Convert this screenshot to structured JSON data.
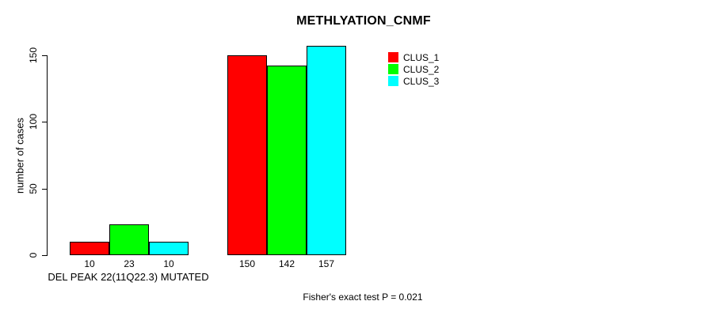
{
  "chart_data": {
    "type": "bar",
    "title": "METHLYATION_CNMF",
    "ylabel": "number of cases",
    "xlabel": "",
    "ylim": [
      0,
      150
    ],
    "yticks": [
      0,
      50,
      100,
      150
    ],
    "grid": false,
    "categories": [
      "DEL PEAK 22(11Q22.3) MUTATED",
      ""
    ],
    "series": [
      {
        "name": "CLUS_1",
        "color": "#FF0000",
        "values": [
          10,
          150
        ]
      },
      {
        "name": "CLUS_2",
        "color": "#00FF00",
        "values": [
          23,
          142
        ]
      },
      {
        "name": "CLUS_3",
        "color": "#00FFFF",
        "values": [
          10,
          157
        ]
      }
    ],
    "bar_value_labels": [
      [
        10,
        23,
        10
      ],
      [
        150,
        142,
        157
      ]
    ],
    "legend_position": "top-right",
    "annotation": "Fisher's exact test P = 0.021"
  }
}
